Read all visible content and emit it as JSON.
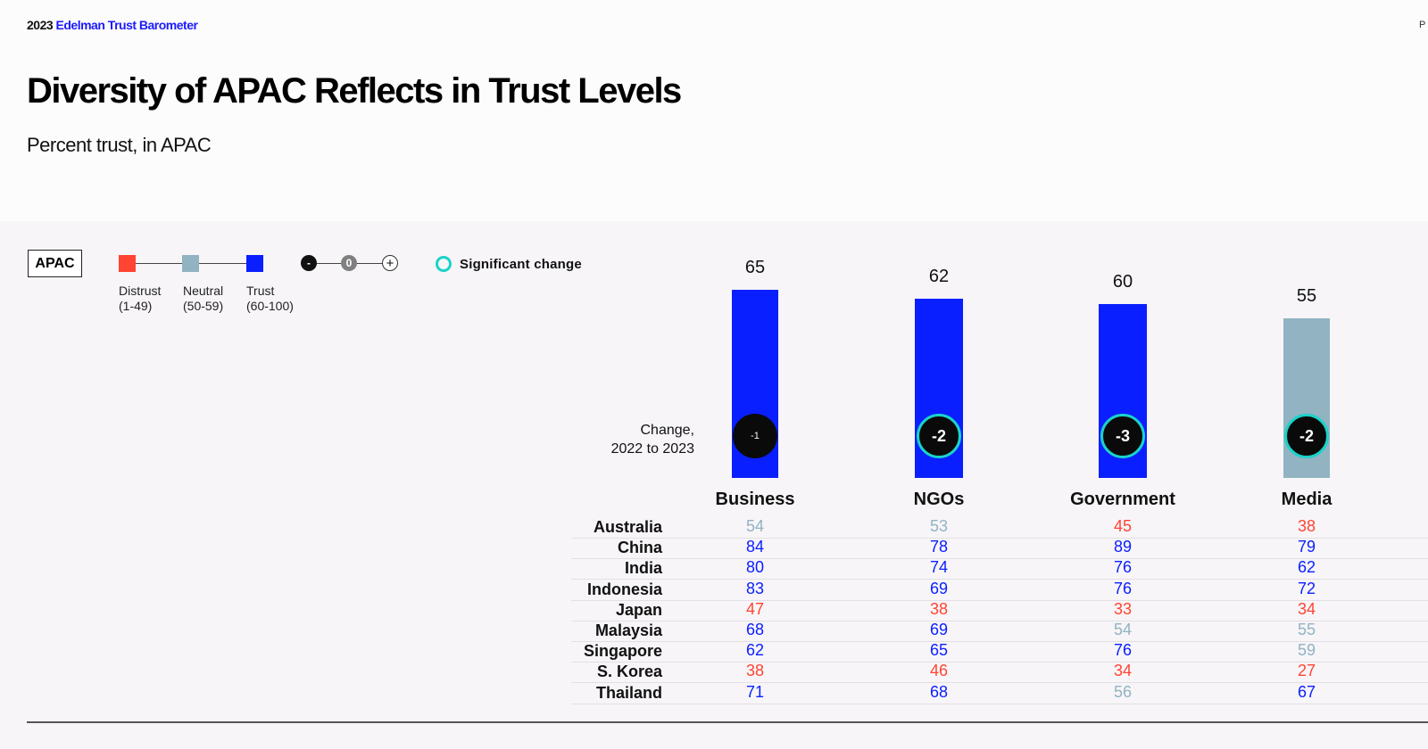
{
  "header": {
    "year": "2023",
    "brand_name": "Edelman Trust Barometer",
    "corner_text": "P",
    "title": "Diversity of APAC Reflects in Trust Levels",
    "subtitle": "Percent trust,  in APAC"
  },
  "legend": {
    "region": "APAC",
    "levels": [
      {
        "label": "Distrust",
        "range": "(1-49)",
        "color": "#ff4433"
      },
      {
        "label": "Neutral",
        "range": "(50-59)",
        "color": "#91b3c2"
      },
      {
        "label": "Trust",
        "range": "(60-100)",
        "color": "#0a1fff"
      }
    ],
    "change_scale": [
      {
        "symbol": "-",
        "style": "negative"
      },
      {
        "symbol": "0",
        "style": "zero"
      },
      {
        "symbol": "+",
        "style": "positive"
      }
    ],
    "significant_change": "Significant change",
    "significant_color": "#1ad3c8"
  },
  "change_label_line1": "Change,",
  "change_label_line2": "2022  to 2023",
  "chart_data": {
    "type": "bar",
    "title": "Diversity of APAC Reflects in Trust Levels",
    "subtitle": "Percent trust,  in APAC",
    "ylabel": "Percent trust",
    "ylim": [
      0,
      100
    ],
    "categories": [
      "Business",
      "NGOs",
      "Government",
      "Media"
    ],
    "values": [
      65,
      62,
      60,
      55
    ],
    "changes": [
      "-1",
      "-2",
      "-3",
      "-2"
    ],
    "significant": [
      false,
      true,
      true,
      true
    ],
    "bar_colors": [
      "#0a1fff",
      "#0a1fff",
      "#0a1fff",
      "#91b3c2"
    ]
  },
  "table": {
    "rows": [
      {
        "country": "Australia",
        "values": [
          "54",
          "53",
          "45",
          "38"
        ]
      },
      {
        "country": "China",
        "values": [
          "84",
          "78",
          "89",
          "79"
        ]
      },
      {
        "country": "India",
        "values": [
          "80",
          "74",
          "76",
          "62"
        ]
      },
      {
        "country": "Indonesia",
        "values": [
          "83",
          "69",
          "76",
          "72"
        ]
      },
      {
        "country": "Japan",
        "values": [
          "47",
          "38",
          "33",
          "34"
        ]
      },
      {
        "country": "Malaysia",
        "values": [
          "68",
          "69",
          "54",
          "55"
        ]
      },
      {
        "country": "Singapore",
        "values": [
          "62",
          "65",
          "76",
          "59"
        ]
      },
      {
        "country": "S. Korea",
        "values": [
          "38",
          "46",
          "34",
          "27"
        ]
      },
      {
        "country": "Thailand",
        "values": [
          "71",
          "68",
          "56",
          "67"
        ]
      }
    ]
  }
}
